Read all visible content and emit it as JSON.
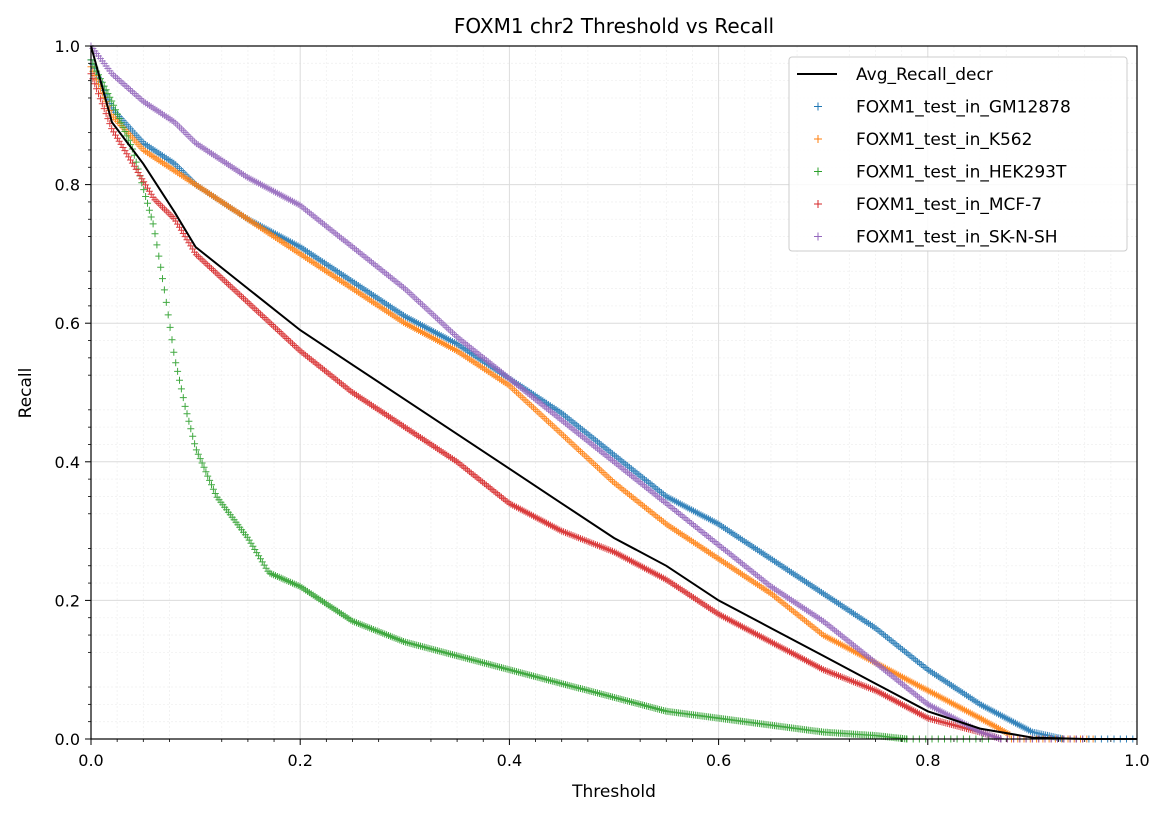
{
  "chart_data": {
    "type": "line",
    "title": "FOXM1 chr2 Threshold vs Recall",
    "xlabel": "Threshold",
    "ylabel": "Recall",
    "xlim": [
      0.0,
      1.0
    ],
    "ylim": [
      0.0,
      1.0
    ],
    "xticks": [
      "0.0",
      "0.2",
      "0.4",
      "0.6",
      "0.8",
      "1.0"
    ],
    "yticks": [
      "0.0",
      "0.2",
      "0.4",
      "0.6",
      "0.8",
      "1.0"
    ],
    "grid": true,
    "minor_grid": true,
    "legend_position": "top-right",
    "series": [
      {
        "name": "Avg_Recall_decr",
        "style": "line",
        "color": "#000000",
        "points": [
          [
            0.0,
            1.0
          ],
          [
            0.02,
            0.89
          ],
          [
            0.05,
            0.83
          ],
          [
            0.08,
            0.76
          ],
          [
            0.1,
            0.71
          ],
          [
            0.15,
            0.65
          ],
          [
            0.2,
            0.59
          ],
          [
            0.25,
            0.54
          ],
          [
            0.3,
            0.49
          ],
          [
            0.35,
            0.44
          ],
          [
            0.4,
            0.39
          ],
          [
            0.45,
            0.34
          ],
          [
            0.5,
            0.29
          ],
          [
            0.55,
            0.25
          ],
          [
            0.6,
            0.2
          ],
          [
            0.65,
            0.16
          ],
          [
            0.7,
            0.12
          ],
          [
            0.75,
            0.08
          ],
          [
            0.8,
            0.04
          ],
          [
            0.85,
            0.015
          ],
          [
            0.9,
            0.002
          ],
          [
            0.95,
            0.0
          ],
          [
            1.0,
            0.0
          ]
        ]
      },
      {
        "name": "FOXM1_test_in_GM12878",
        "style": "markers",
        "color": "#1f77b4",
        "points": [
          [
            0.0,
            0.98
          ],
          [
            0.02,
            0.91
          ],
          [
            0.05,
            0.86
          ],
          [
            0.08,
            0.83
          ],
          [
            0.1,
            0.8
          ],
          [
            0.15,
            0.75
          ],
          [
            0.2,
            0.71
          ],
          [
            0.25,
            0.66
          ],
          [
            0.3,
            0.61
          ],
          [
            0.35,
            0.57
          ],
          [
            0.4,
            0.52
          ],
          [
            0.45,
            0.47
          ],
          [
            0.5,
            0.41
          ],
          [
            0.55,
            0.35
          ],
          [
            0.6,
            0.31
          ],
          [
            0.65,
            0.26
          ],
          [
            0.7,
            0.21
          ],
          [
            0.75,
            0.16
          ],
          [
            0.8,
            0.1
          ],
          [
            0.85,
            0.05
          ],
          [
            0.9,
            0.01
          ],
          [
            0.93,
            0.0
          ]
        ]
      },
      {
        "name": "FOXM1_test_in_K562",
        "style": "markers",
        "color": "#ff7f0e",
        "points": [
          [
            0.0,
            0.97
          ],
          [
            0.02,
            0.9
          ],
          [
            0.05,
            0.85
          ],
          [
            0.08,
            0.82
          ],
          [
            0.1,
            0.8
          ],
          [
            0.15,
            0.75
          ],
          [
            0.2,
            0.7
          ],
          [
            0.25,
            0.65
          ],
          [
            0.3,
            0.6
          ],
          [
            0.35,
            0.56
          ],
          [
            0.4,
            0.51
          ],
          [
            0.45,
            0.44
          ],
          [
            0.5,
            0.37
          ],
          [
            0.55,
            0.31
          ],
          [
            0.6,
            0.26
          ],
          [
            0.65,
            0.21
          ],
          [
            0.7,
            0.15
          ],
          [
            0.75,
            0.11
          ],
          [
            0.8,
            0.07
          ],
          [
            0.85,
            0.03
          ],
          [
            0.88,
            0.005
          ]
        ]
      },
      {
        "name": "FOXM1_test_in_HEK293T",
        "style": "markers",
        "color": "#2ca02c",
        "points": [
          [
            0.0,
            0.98
          ],
          [
            0.02,
            0.92
          ],
          [
            0.04,
            0.85
          ],
          [
            0.06,
            0.74
          ],
          [
            0.07,
            0.65
          ],
          [
            0.08,
            0.55
          ],
          [
            0.09,
            0.48
          ],
          [
            0.1,
            0.42
          ],
          [
            0.12,
            0.35
          ],
          [
            0.15,
            0.29
          ],
          [
            0.17,
            0.24
          ],
          [
            0.2,
            0.22
          ],
          [
            0.25,
            0.17
          ],
          [
            0.3,
            0.14
          ],
          [
            0.35,
            0.12
          ],
          [
            0.4,
            0.1
          ],
          [
            0.45,
            0.08
          ],
          [
            0.5,
            0.06
          ],
          [
            0.55,
            0.04
          ],
          [
            0.6,
            0.03
          ],
          [
            0.65,
            0.02
          ],
          [
            0.7,
            0.01
          ],
          [
            0.75,
            0.005
          ],
          [
            0.78,
            0.0
          ]
        ]
      },
      {
        "name": "FOXM1_test_in_MCF-7",
        "style": "markers",
        "color": "#d62728",
        "points": [
          [
            0.0,
            0.96
          ],
          [
            0.02,
            0.88
          ],
          [
            0.04,
            0.83
          ],
          [
            0.06,
            0.78
          ],
          [
            0.08,
            0.75
          ],
          [
            0.1,
            0.7
          ],
          [
            0.15,
            0.63
          ],
          [
            0.2,
            0.56
          ],
          [
            0.25,
            0.5
          ],
          [
            0.3,
            0.45
          ],
          [
            0.35,
            0.4
          ],
          [
            0.4,
            0.34
          ],
          [
            0.45,
            0.3
          ],
          [
            0.5,
            0.27
          ],
          [
            0.55,
            0.23
          ],
          [
            0.6,
            0.18
          ],
          [
            0.65,
            0.14
          ],
          [
            0.7,
            0.1
          ],
          [
            0.75,
            0.07
          ],
          [
            0.8,
            0.03
          ],
          [
            0.85,
            0.01
          ],
          [
            0.87,
            0.0
          ]
        ]
      },
      {
        "name": "FOXM1_test_in_SK-N-SH",
        "style": "markers",
        "color": "#9467bd",
        "points": [
          [
            0.0,
            1.0
          ],
          [
            0.02,
            0.96
          ],
          [
            0.05,
            0.92
          ],
          [
            0.08,
            0.89
          ],
          [
            0.1,
            0.86
          ],
          [
            0.15,
            0.81
          ],
          [
            0.2,
            0.77
          ],
          [
            0.25,
            0.71
          ],
          [
            0.3,
            0.65
          ],
          [
            0.35,
            0.58
          ],
          [
            0.4,
            0.52
          ],
          [
            0.45,
            0.46
          ],
          [
            0.5,
            0.4
          ],
          [
            0.55,
            0.34
          ],
          [
            0.6,
            0.28
          ],
          [
            0.65,
            0.22
          ],
          [
            0.7,
            0.17
          ],
          [
            0.75,
            0.11
          ],
          [
            0.8,
            0.05
          ],
          [
            0.85,
            0.01
          ],
          [
            0.87,
            0.0
          ]
        ]
      }
    ]
  }
}
